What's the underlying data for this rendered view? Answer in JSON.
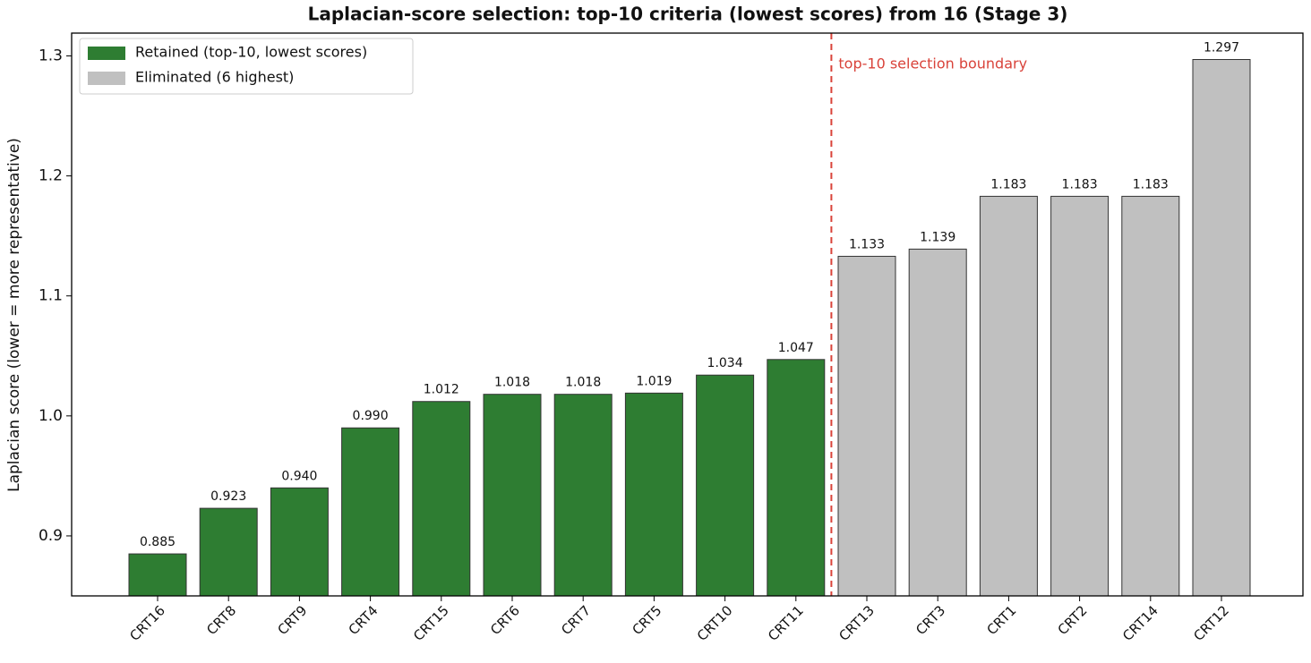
{
  "chart_data": {
    "type": "bar",
    "title": "Laplacian-score selection: top-10 criteria (lowest scores) from 16 (Stage 3)",
    "y_label": "Laplacian score (lower = more representative)",
    "annotation": "top-10 selection boundary",
    "annotation_color": "#d9433a",
    "categories": [
      "CRT16",
      "CRT8",
      "CRT9",
      "CRT4",
      "CRT15",
      "CRT6",
      "CRT7",
      "CRT5",
      "CRT10",
      "CRT11",
      "CRT13",
      "CRT3",
      "CRT1",
      "CRT2",
      "CRT14",
      "CRT12"
    ],
    "series": [
      {
        "name": "Retained (top-10, lowest scores)",
        "color": "#2e7d32",
        "values": [
          0.885,
          0.923,
          0.94,
          0.99,
          1.012,
          1.018,
          1.018,
          1.019,
          1.034,
          1.047,
          null,
          null,
          null,
          null,
          null,
          null
        ],
        "value_labels": [
          "0.885",
          "0.923",
          "0.940",
          "0.990",
          "1.012",
          "1.018",
          "1.018",
          "1.019",
          "1.034",
          "1.047",
          null,
          null,
          null,
          null,
          null,
          null
        ]
      },
      {
        "name": "Eliminated (6 highest)",
        "color": "#c0c0c0",
        "values": [
          null,
          null,
          null,
          null,
          null,
          null,
          null,
          null,
          null,
          null,
          1.133,
          1.139,
          1.183,
          1.183,
          1.183,
          1.297
        ],
        "value_labels": [
          null,
          null,
          null,
          null,
          null,
          null,
          null,
          null,
          null,
          null,
          "1.133",
          "1.139",
          "1.183",
          "1.183",
          "1.183",
          "1.297"
        ]
      }
    ],
    "ylim": [
      0.85,
      1.319
    ],
    "yticks": [
      0.9,
      {
        "value": 1,
        "label": "1.0"
      },
      1.1,
      1.2,
      1.3
    ],
    "grid": false,
    "legend": "upper left"
  }
}
